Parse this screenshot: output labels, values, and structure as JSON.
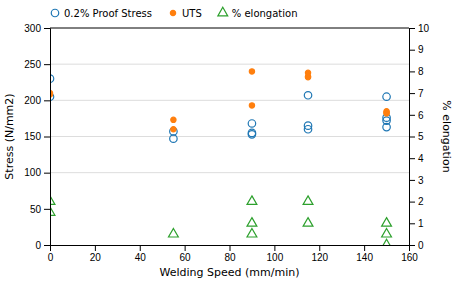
{
  "chart_data": {
    "type": "scatter",
    "x_label": "Welding Speed (mm/min)",
    "y_label": "Stress (N/mm2)",
    "y2_label": "% elongation",
    "xlim": [
      0,
      160
    ],
    "xticks": [
      0,
      20,
      40,
      60,
      80,
      100,
      120,
      140,
      160
    ],
    "ylim": [
      0,
      300
    ],
    "yticks": [
      0,
      50,
      100,
      150,
      200,
      250,
      300
    ],
    "y2lim": [
      0,
      10
    ],
    "y2ticks": [
      0,
      1,
      2,
      3,
      4,
      5,
      6,
      7,
      8,
      9,
      10
    ],
    "hlines": [
      100,
      150,
      200,
      250
    ],
    "legend": "upper left",
    "series": [
      {
        "name": "0.2% Proof Stress",
        "marker": "circle-open",
        "x": [
          0,
          0,
          55,
          55,
          90,
          90,
          90,
          115,
          115,
          115,
          150,
          150,
          150,
          150
        ],
        "values": [
          230,
          205,
          147,
          157,
          168,
          155,
          153,
          165,
          160,
          207,
          163,
          172,
          176,
          205
        ]
      },
      {
        "name": "UTS",
        "marker": "circle",
        "x": [
          0,
          0,
          55,
          55,
          90,
          90,
          115,
          115,
          115,
          150,
          150,
          150
        ],
        "values": [
          210,
          208,
          160,
          173,
          240,
          193,
          238,
          233,
          232,
          185,
          183,
          182
        ]
      },
      {
        "name": "% elongation",
        "marker": "triangle-open",
        "axis": "y2",
        "x": [
          0,
          0,
          55,
          90,
          90,
          90,
          115,
          115,
          150,
          150,
          150
        ],
        "values": [
          2.0,
          1.5,
          0.5,
          2.0,
          1.0,
          0.5,
          2.0,
          1.0,
          1.0,
          0.5,
          0.0
        ]
      }
    ]
  }
}
